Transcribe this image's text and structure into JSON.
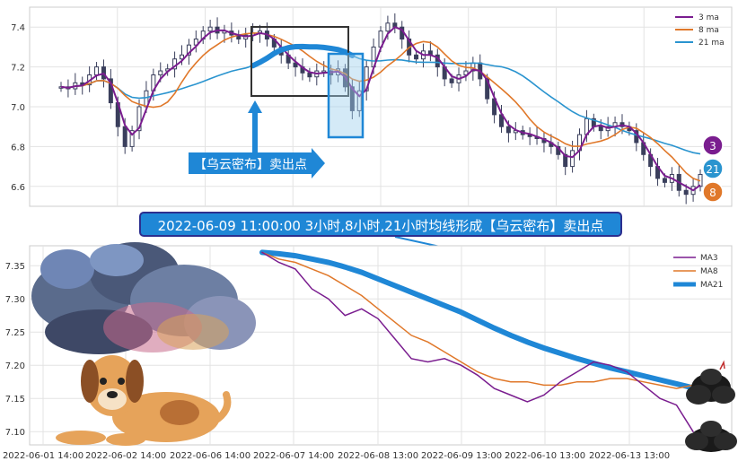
{
  "chart_data": [
    {
      "type": "line",
      "panel": "top",
      "y_ticks": [
        6.6,
        6.8,
        7.0,
        7.2,
        7.4
      ],
      "ylim": [
        6.5,
        7.5
      ],
      "grid": true,
      "legend_position": "top-right",
      "series": [
        {
          "name": "3 ma",
          "color": "#7a1d8f"
        },
        {
          "name": "8 ma",
          "color": "#e0782a"
        },
        {
          "name": "21 ma",
          "color": "#2a94cf"
        }
      ],
      "approx_close": [
        7.1,
        7.09,
        7.12,
        7.11,
        7.16,
        7.2,
        7.14,
        7.02,
        6.9,
        6.8,
        6.88,
        7.0,
        7.08,
        7.16,
        7.18,
        7.19,
        7.24,
        7.26,
        7.31,
        7.34,
        7.38,
        7.4,
        7.37,
        7.38,
        7.36,
        7.34,
        7.36,
        7.37,
        7.38,
        7.34,
        7.3,
        7.26,
        7.22,
        7.2,
        7.17,
        7.15,
        7.18,
        7.18,
        7.16,
        7.19,
        7.1,
        6.98,
        7.08,
        7.2,
        7.3,
        7.38,
        7.42,
        7.4,
        7.34,
        7.26,
        7.24,
        7.28,
        7.26,
        7.2,
        7.14,
        7.12,
        7.16,
        7.18,
        7.22,
        7.14,
        7.04,
        6.96,
        6.9,
        6.87,
        6.88,
        6.86,
        6.85,
        6.84,
        6.82,
        6.8,
        6.76,
        6.7,
        6.78,
        6.86,
        6.94,
        6.9,
        6.88,
        6.9,
        6.92,
        6.9,
        6.88,
        6.82,
        6.76,
        6.7,
        6.64,
        6.62,
        6.66,
        6.58,
        6.56,
        6.6,
        6.66
      ]
    },
    {
      "type": "line",
      "panel": "bottom",
      "x_ticks": [
        "2022-06-01 14:00",
        "2022-06-02 14:00",
        "2022-06-06 14:00",
        "2022-06-07 14:00",
        "2022-06-08 13:00",
        "2022-06-09 13:00",
        "2022-06-10 13:00",
        "2022-06-13 13:00"
      ],
      "y_ticks": [
        "7.10",
        "7.15",
        "7.20",
        "7.25",
        "7.30",
        "7.35"
      ],
      "ylim": [
        7.08,
        7.38
      ],
      "grid": true,
      "legend_position": "top-right",
      "series": [
        {
          "name": "MA3",
          "color": "#7a1d8f",
          "values": [
            7.37,
            7.355,
            7.345,
            7.315,
            7.3,
            7.275,
            7.285,
            7.27,
            7.24,
            7.21,
            7.205,
            7.21,
            7.2,
            7.185,
            7.165,
            7.155,
            7.145,
            7.155,
            7.175,
            7.19,
            7.205,
            7.2,
            7.19,
            7.17,
            7.15,
            7.14,
            7.1
          ]
        },
        {
          "name": "MA8",
          "color": "#e0782a",
          "values": [
            7.37,
            7.36,
            7.355,
            7.345,
            7.335,
            7.32,
            7.305,
            7.285,
            7.265,
            7.245,
            7.235,
            7.22,
            7.205,
            7.19,
            7.18,
            7.175,
            7.175,
            7.17,
            7.17,
            7.175,
            7.175,
            7.18,
            7.18,
            7.175,
            7.17,
            7.165,
            7.17
          ]
        },
        {
          "name": "MA21",
          "color": "#1f87d6",
          "values": [
            7.37,
            7.368,
            7.365,
            7.36,
            7.355,
            7.348,
            7.34,
            7.33,
            7.32,
            7.31,
            7.3,
            7.29,
            7.28,
            7.268,
            7.256,
            7.245,
            7.235,
            7.226,
            7.218,
            7.21,
            7.203,
            7.196,
            7.19,
            7.184,
            7.178,
            7.172,
            7.166
          ]
        }
      ]
    }
  ],
  "annotations": {
    "pattern_label": "【乌云密布】卖出点",
    "banner_text": "2022-06-09 11:00:00 3小时,8小时,21小时均线形成【乌云密布】卖出点",
    "badges": [
      "3",
      "21",
      "8"
    ]
  },
  "colors": {
    "ma3": "#7a1d8f",
    "ma8": "#e0782a",
    "ma21": "#2a94cf",
    "callout": "#1f87d6",
    "box": "#333333"
  }
}
